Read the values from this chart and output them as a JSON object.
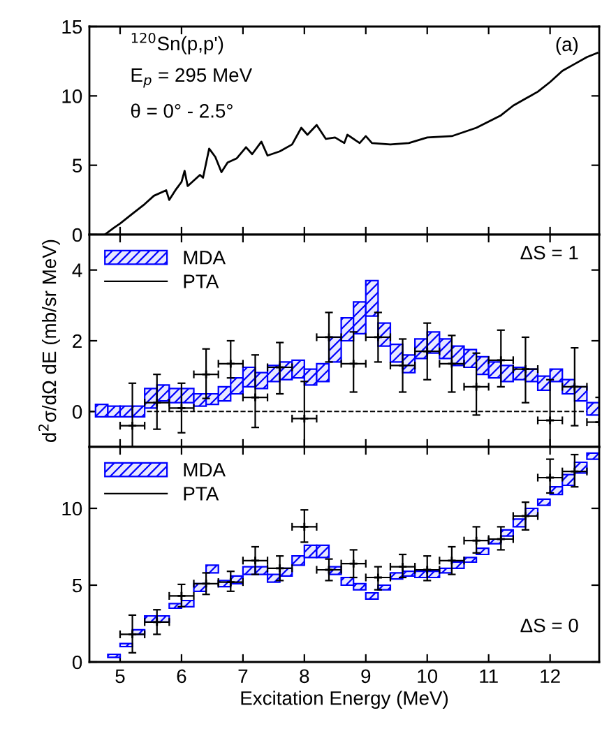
{
  "chart_data": [
    {
      "type": "line",
      "xlim": [
        4.5,
        12.8
      ],
      "ylim": [
        0,
        15
      ],
      "xticks": [
        5,
        6,
        7,
        8,
        9,
        10,
        11,
        12
      ],
      "yticks": [
        0,
        5,
        10,
        15
      ],
      "tick_labels": "y",
      "annotations": [
        "$^{120}$Sn(p,p')",
        "E$_{p}$ = 295 MeV",
        "θ = 0° - 2.5°",
        "(a)"
      ],
      "series": [
        {
          "color": "#000000",
          "x": [
            4.75,
            4.9,
            5.0,
            5.2,
            5.4,
            5.55,
            5.75,
            5.8,
            5.9,
            6.0,
            6.05,
            6.1,
            6.2,
            6.3,
            6.35,
            6.45,
            6.55,
            6.65,
            6.75,
            6.9,
            7.05,
            7.15,
            7.3,
            7.4,
            7.6,
            7.8,
            7.95,
            8.05,
            8.2,
            8.35,
            8.5,
            8.65,
            8.7,
            8.9,
            9.0,
            9.1,
            9.4,
            9.7,
            10.0,
            10.4,
            10.8,
            11.2,
            11.4,
            11.6,
            11.8,
            12.0,
            12.2,
            12.4,
            12.6,
            12.77
          ],
          "values": [
            0,
            0.5,
            0.8,
            1.5,
            2.2,
            2.8,
            3.2,
            2.5,
            3.2,
            3.8,
            4.6,
            3.5,
            3.9,
            4.3,
            4.1,
            6.2,
            5.6,
            4.5,
            5.2,
            5.5,
            6.3,
            5.8,
            6.7,
            5.7,
            6.0,
            6.5,
            7.7,
            7.2,
            7.9,
            6.9,
            7.0,
            6.6,
            7.2,
            6.6,
            7.1,
            6.6,
            6.5,
            6.6,
            7.0,
            7.1,
            7.7,
            8.6,
            9.3,
            9.8,
            10.3,
            11.0,
            11.8,
            12.3,
            12.8,
            13.1
          ]
        }
      ]
    },
    {
      "type": "bar",
      "xlim": [
        4.5,
        12.8
      ],
      "ylim": [
        -1,
        5
      ],
      "xticks": [
        5,
        6,
        7,
        8,
        9,
        10,
        11,
        12
      ],
      "yticks": [
        0,
        2,
        4
      ],
      "tick_labels": "y",
      "ylabel": "d$^{2}$σ/dΩ dE (mb/sr MeV)",
      "annotations": [
        "ΔS = 1"
      ],
      "legend": "top left",
      "ref_lines": [
        {
          "axis": "y",
          "value": 0,
          "color": "#000000",
          "line_style": "dashed"
        }
      ],
      "x": [
        4.7,
        4.9,
        5.1,
        5.3,
        5.5,
        5.7,
        5.9,
        6.1,
        6.3,
        6.5,
        6.7,
        6.9,
        7.1,
        7.3,
        7.5,
        7.7,
        7.9,
        8.1,
        8.3,
        8.5,
        8.7,
        8.9,
        9.1,
        9.3,
        9.5,
        9.7,
        9.9,
        10.1,
        10.3,
        10.5,
        10.7,
        10.9,
        11.1,
        11.3,
        11.5,
        11.7,
        11.9,
        12.1,
        12.3,
        12.5,
        12.7
      ],
      "series": [
        {
          "name": "MDA",
          "type": "bar",
          "color": "#0000ff",
          "base": [
            -0.15,
            -0.15,
            -0.15,
            -0.15,
            0.1,
            0.3,
            0.25,
            0.25,
            0.15,
            0.2,
            0.3,
            0.5,
            0.7,
            0.65,
            0.85,
            0.9,
            0.95,
            0.75,
            0.85,
            1.4,
            2.0,
            2.2,
            2.7,
            1.85,
            1.4,
            1.1,
            1.5,
            1.65,
            1.5,
            1.3,
            1.25,
            1.05,
            0.95,
            0.85,
            0.9,
            0.85,
            0.6,
            0.85,
            0.5,
            0.3,
            -0.1
          ],
          "values": [
            0.35,
            0.3,
            0.3,
            0.3,
            0.55,
            0.45,
            0.4,
            0.4,
            0.35,
            0.3,
            0.4,
            0.45,
            0.55,
            0.45,
            0.45,
            0.5,
            0.5,
            0.45,
            0.5,
            0.7,
            0.65,
            0.9,
            1.0,
            0.65,
            0.5,
            0.5,
            0.55,
            0.6,
            0.55,
            0.55,
            0.5,
            0.5,
            0.45,
            0.45,
            0.35,
            0.35,
            0.4,
            0.35,
            0.4,
            0.4,
            0.35
          ]
        },
        {
          "name": "PTA",
          "type": "scatter",
          "color": "#000000",
          "marker": "cross",
          "x": [
            5.2,
            5.6,
            6.0,
            6.4,
            6.8,
            7.2,
            7.6,
            8.0,
            8.4,
            8.8,
            9.2,
            9.6,
            10.0,
            10.4,
            10.8,
            11.2,
            11.6,
            12.0,
            12.4,
            12.8
          ],
          "values": [
            -0.4,
            0.25,
            0.1,
            1.05,
            1.35,
            0.4,
            1.25,
            -0.2,
            2.1,
            1.35,
            2.1,
            1.3,
            1.7,
            1.35,
            0.7,
            1.45,
            1.2,
            -0.25,
            0.7,
            -0.3
          ],
          "errors": [
            [
              -1,
              0.8
            ],
            [
              -0.5,
              1.05
            ],
            [
              -0.6,
              0.8
            ],
            [
              0.37,
              1.77
            ],
            [
              0.95,
              2.0
            ],
            [
              -0.45,
              1.6
            ],
            [
              0.5,
              1.95
            ],
            [
              -1,
              0.85
            ],
            [
              1.4,
              2.8
            ],
            [
              0.55,
              2.25
            ],
            [
              1.4,
              2.8
            ],
            [
              0.55,
              2.05
            ],
            [
              0.9,
              2.5
            ],
            [
              0.55,
              2.15
            ],
            [
              -0.1,
              1.65
            ],
            [
              0.7,
              2.3
            ],
            [
              0.25,
              2.1
            ],
            [
              -1,
              0.9
            ],
            [
              -0.4,
              1.8
            ],
            [
              -1,
              0.4
            ]
          ],
          "xerrors": [
            0.2,
            0.2,
            0.2,
            0.2,
            0.2,
            0.2,
            0.2,
            0.2,
            0.2,
            0.2,
            0.2,
            0.2,
            0.2,
            0.2,
            0.2,
            0.2,
            0.2,
            0.2,
            0.2,
            [
              12.6,
              12.8
            ]
          ]
        }
      ]
    },
    {
      "type": "bar",
      "xlim": [
        4.5,
        12.8
      ],
      "ylim": [
        0,
        14
      ],
      "xticks": [
        5,
        6,
        7,
        8,
        9,
        10,
        11,
        12
      ],
      "yticks": [
        0,
        5,
        10
      ],
      "xlabel": "Excitation Energy (MeV)",
      "annotations": [
        "ΔS = 0"
      ],
      "legend": "top left",
      "x": [
        4.9,
        5.1,
        5.3,
        5.5,
        5.7,
        5.9,
        6.1,
        6.3,
        6.5,
        6.7,
        6.9,
        7.1,
        7.3,
        7.5,
        7.7,
        7.9,
        8.1,
        8.3,
        8.5,
        8.7,
        8.9,
        9.1,
        9.3,
        9.5,
        9.7,
        9.9,
        10.1,
        10.3,
        10.5,
        10.7,
        10.9,
        11.1,
        11.3,
        11.5,
        11.7,
        11.9,
        12.1,
        12.3,
        12.5,
        12.7
      ],
      "series": [
        {
          "name": "MDA",
          "type": "bar",
          "color": "#0000ff",
          "base": [
            0.3,
            1.0,
            1.8,
            2.6,
            2.6,
            3.5,
            3.6,
            4.6,
            5.8,
            4.9,
            5.1,
            5.7,
            5.7,
            5.2,
            5.6,
            6.3,
            6.8,
            6.8,
            5.7,
            5.0,
            4.7,
            4.1,
            4.7,
            5.4,
            5.6,
            5.5,
            5.5,
            5.8,
            6.1,
            6.5,
            7.0,
            7.7,
            8.2,
            8.8,
            9.5,
            10.2,
            10.9,
            11.5,
            12.3,
            13.2
          ],
          "values": [
            0.2,
            0.2,
            0.3,
            0.4,
            0.4,
            0.3,
            0.4,
            0.5,
            0.5,
            0.4,
            0.5,
            0.5,
            0.5,
            0.5,
            0.5,
            0.6,
            0.8,
            0.8,
            0.5,
            0.5,
            0.4,
            0.4,
            0.3,
            0.4,
            0.3,
            0.4,
            0.4,
            0.3,
            0.4,
            0.3,
            0.4,
            0.3,
            0.4,
            0.5,
            0.5,
            0.4,
            0.5,
            0.7,
            0.7,
            0.4
          ]
        },
        {
          "name": "PTA",
          "type": "scatter",
          "color": "#000000",
          "marker": "cross",
          "x": [
            5.2,
            5.6,
            6.0,
            6.4,
            6.8,
            7.2,
            7.6,
            8.0,
            8.4,
            8.8,
            9.2,
            9.6,
            10.0,
            10.4,
            10.8,
            11.2,
            11.6,
            12.0,
            12.4
          ],
          "values": [
            1.8,
            2.6,
            4.3,
            5.1,
            5.2,
            6.6,
            6.1,
            8.8,
            6.0,
            6.4,
            5.5,
            6.2,
            6.0,
            6.6,
            7.9,
            8.0,
            9.5,
            12.0,
            12.4
          ],
          "errors": [
            [
              0.6,
              3.05
            ],
            [
              1.8,
              3.4
            ],
            [
              3.6,
              5.05
            ],
            [
              4.4,
              5.8
            ],
            [
              4.6,
              5.9
            ],
            [
              5.7,
              7.5
            ],
            [
              5.3,
              6.9
            ],
            [
              7.8,
              9.9
            ],
            [
              5.3,
              6.7
            ],
            [
              5.5,
              7.3
            ],
            [
              4.7,
              6.2
            ],
            [
              5.5,
              7.0
            ],
            [
              5.3,
              6.9
            ],
            [
              5.7,
              7.5
            ],
            [
              7.1,
              8.8
            ],
            [
              7.3,
              8.8
            ],
            [
              8.6,
              10.4
            ],
            [
              11.0,
              13.2
            ],
            [
              11.4,
              13.5
            ]
          ],
          "xerrors": [
            0.2,
            0.2,
            0.2,
            0.2,
            0.2,
            0.2,
            0.2,
            0.2,
            0.2,
            0.2,
            0.2,
            0.2,
            0.2,
            0.2,
            0.2,
            0.2,
            0.2,
            0.2,
            0.2
          ]
        }
      ]
    }
  ]
}
